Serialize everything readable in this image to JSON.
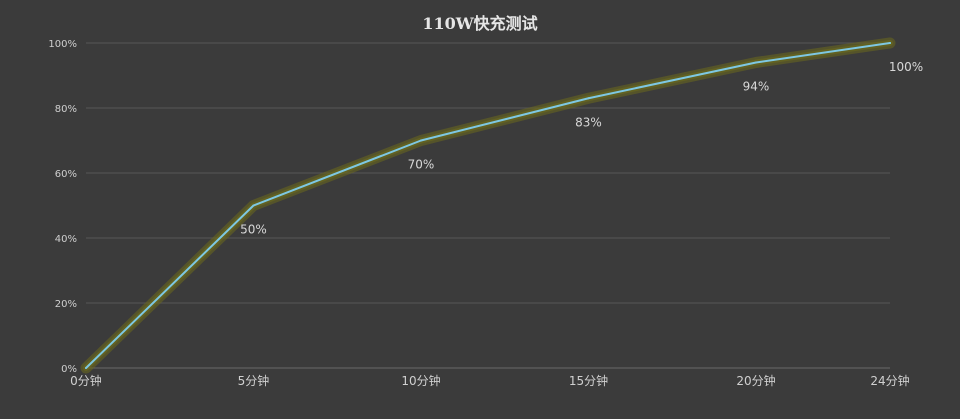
{
  "chart_data": {
    "type": "line",
    "title": "110W快充测试",
    "xlabel": "",
    "ylabel": "",
    "categories": [
      "0分钟",
      "5分钟",
      "10分钟",
      "15分钟",
      "20分钟",
      "24分钟"
    ],
    "x_minutes": [
      0,
      5,
      10,
      15,
      20,
      24
    ],
    "series": [
      {
        "name": "",
        "values": [
          0,
          50,
          70,
          83,
          94,
          100
        ],
        "data_labels": [
          "",
          "50%",
          "70%",
          "83%",
          "94%",
          "100%"
        ],
        "color": "#7ec8e3",
        "glow_color": "#6b6a1e"
      }
    ],
    "ylim": [
      0,
      100
    ],
    "y_ticks": [
      "0%",
      "20%",
      "40%",
      "60%",
      "80%",
      "100%"
    ],
    "grid": true,
    "legend": "none",
    "background": "#3b3b3b"
  }
}
